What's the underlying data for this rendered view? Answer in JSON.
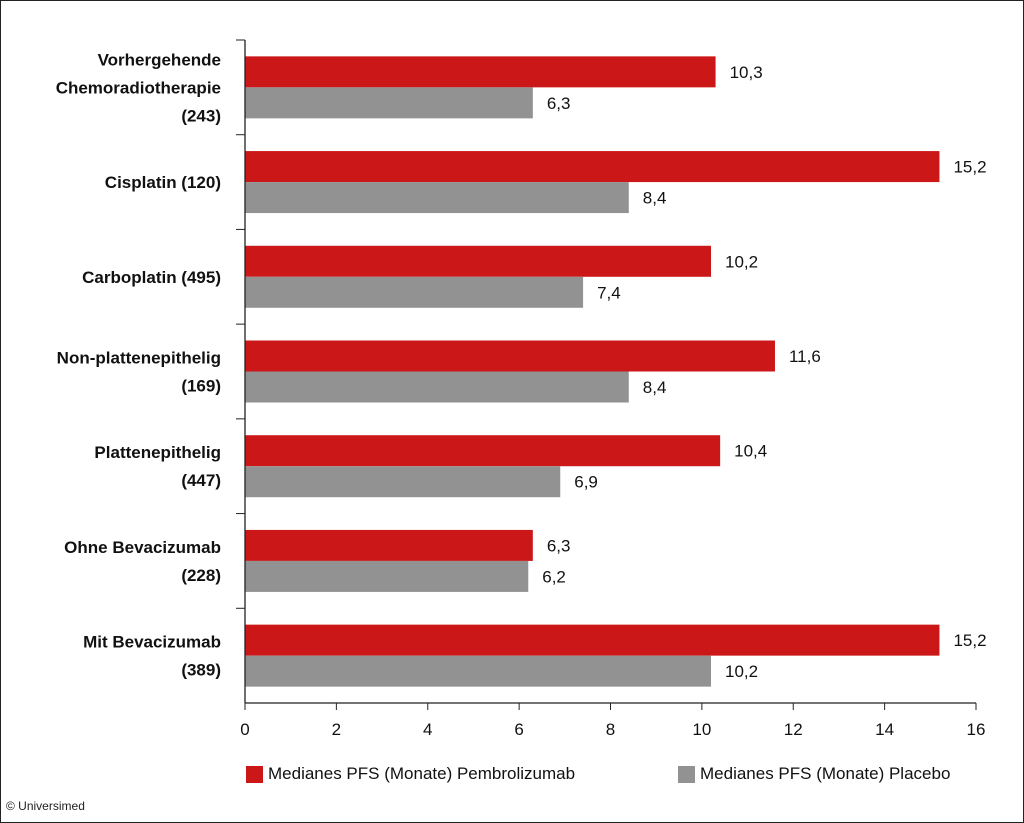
{
  "chart_data": {
    "type": "bar",
    "orientation": "horizontal",
    "categories": [
      [
        "Vorhergehende",
        "Chemoradiotherapie",
        "(243)"
      ],
      [
        "Cisplatin (120)"
      ],
      [
        "Carboplatin (495)"
      ],
      [
        "Non-plattenepithelig",
        "(169)"
      ],
      [
        "Plattenepithelig",
        "(447)"
      ],
      [
        "Ohne Bevacizumab",
        "(228)"
      ],
      [
        "Mit Bevacizumab",
        "(389)"
      ]
    ],
    "series": [
      {
        "name": "Medianes PFS (Monate) Pembrolizumab",
        "color": "#cc1719",
        "values": [
          10.3,
          15.2,
          10.2,
          11.6,
          10.4,
          6.3,
          15.2
        ],
        "labels": [
          "10,3",
          "15,2",
          "10,2",
          "11,6",
          "10,4",
          "6,3",
          "15,2"
        ]
      },
      {
        "name": "Medianes PFS (Monate) Placebo",
        "color": "#929292",
        "values": [
          6.3,
          8.4,
          7.4,
          8.4,
          6.9,
          6.2,
          10.2
        ],
        "labels": [
          "6,3",
          "8,4",
          "7,4",
          "8,4",
          "6,9",
          "6,2",
          "10,2"
        ]
      }
    ],
    "xlim": [
      0,
      16
    ],
    "xticks": [
      "0",
      "2",
      "4",
      "6",
      "8",
      "10",
      "12",
      "14",
      "16"
    ],
    "grid": false,
    "legend_position": "bottom"
  },
  "credit": "© Universimed"
}
